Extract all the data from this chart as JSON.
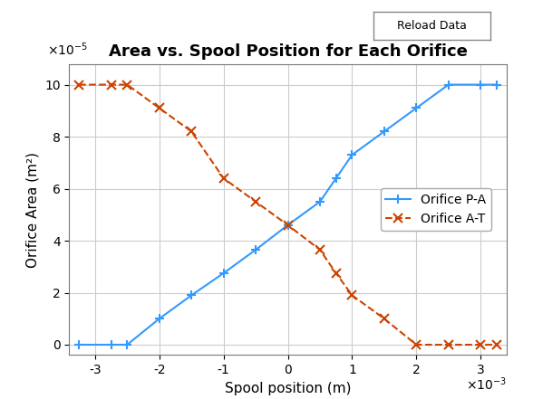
{
  "title": "Area vs. Spool Position for Each Orifice",
  "xlabel": "Spool position (m)",
  "ylabel": "Orifice Area (m²)",
  "xlim": [
    -0.0034,
    0.0034
  ],
  "ylim": [
    -4e-06,
    0.000108
  ],
  "x_PA": [
    -0.00325,
    -0.00275,
    -0.0025,
    -0.002,
    -0.0015,
    -0.001,
    -0.0005,
    0.0,
    0.0005,
    0.00075,
    0.001,
    0.0015,
    0.002,
    0.0025,
    0.003,
    0.00325
  ],
  "y_PA": [
    0.0,
    0.0,
    0.0,
    1e-05,
    1.9e-05,
    2.75e-05,
    3.65e-05,
    4.6e-05,
    5.5e-05,
    6.4e-05,
    7.3e-05,
    8.2e-05,
    9.1e-05,
    0.0001,
    0.0001,
    0.0001
  ],
  "x_AT": [
    -0.00325,
    -0.00275,
    -0.0025,
    -0.002,
    -0.0015,
    -0.001,
    -0.0005,
    0.0,
    0.0005,
    0.00075,
    0.001,
    0.0015,
    0.002,
    0.0025,
    0.003,
    0.00325
  ],
  "y_AT": [
    0.0001,
    0.0001,
    0.0001,
    9.1e-05,
    8.2e-05,
    6.4e-05,
    5.5e-05,
    4.6e-05,
    3.65e-05,
    2.75e-05,
    1.9e-05,
    1e-05,
    0.0,
    0.0,
    0.0,
    0.0
  ],
  "color_PA": "#3399FF",
  "color_AT": "#CC4400",
  "bg_color": "#FFFFFF",
  "grid_color": "#CCCCCC",
  "title_fontsize": 13,
  "label_fontsize": 11,
  "tick_fontsize": 10,
  "legend_fontsize": 10,
  "reload_button_text": "Reload Data"
}
